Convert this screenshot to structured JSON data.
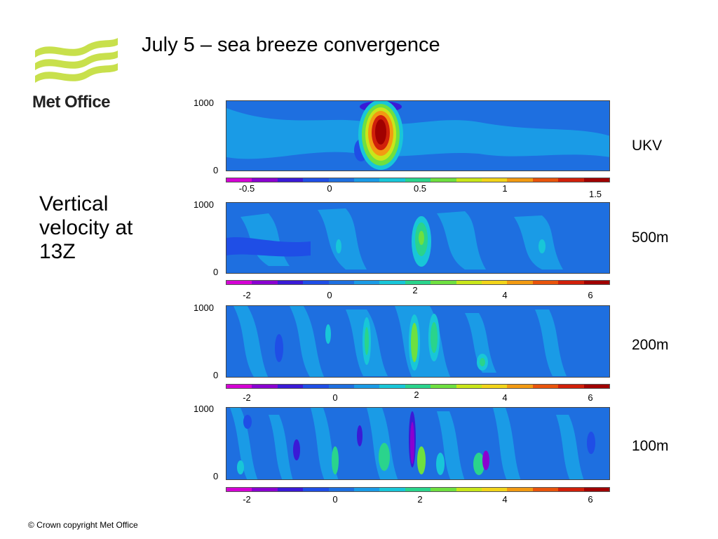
{
  "logo": {
    "text": "Met Office",
    "icon": "met-office-waves-logo",
    "wave_color": "#c8e04c"
  },
  "title": "July 5 – sea breeze convergence",
  "side_text": "Vertical velocity at 13Z",
  "panels": [
    {
      "label": "UKV",
      "y_top": "1000",
      "y_bottom": "0",
      "ticks": [
        "-0.5",
        "0",
        "0.5",
        "1",
        "1.5"
      ]
    },
    {
      "label": "500m",
      "y_top": "1000",
      "y_bottom": "0",
      "ticks": [
        "-2",
        "0",
        "2",
        "4",
        "6"
      ]
    },
    {
      "label": "200m",
      "y_top": "1000",
      "y_bottom": "0",
      "ticks": [
        "-2",
        "0",
        "2",
        "4",
        "6"
      ]
    },
    {
      "label": "100m",
      "y_top": "1000",
      "y_bottom": "0",
      "ticks": [
        "-2",
        "0",
        "2",
        "4",
        "6"
      ]
    }
  ],
  "colorbar_colors": [
    "#d400d4",
    "#8a00d0",
    "#3a1ad6",
    "#1f4ee6",
    "#1e6fe0",
    "#1a9be6",
    "#18c6d8",
    "#2ad48c",
    "#6ee040",
    "#c8e61a",
    "#f2d41a",
    "#f29a12",
    "#e8540c",
    "#d0200a",
    "#a00000"
  ],
  "copyright": "© Crown copyright   Met Office"
}
